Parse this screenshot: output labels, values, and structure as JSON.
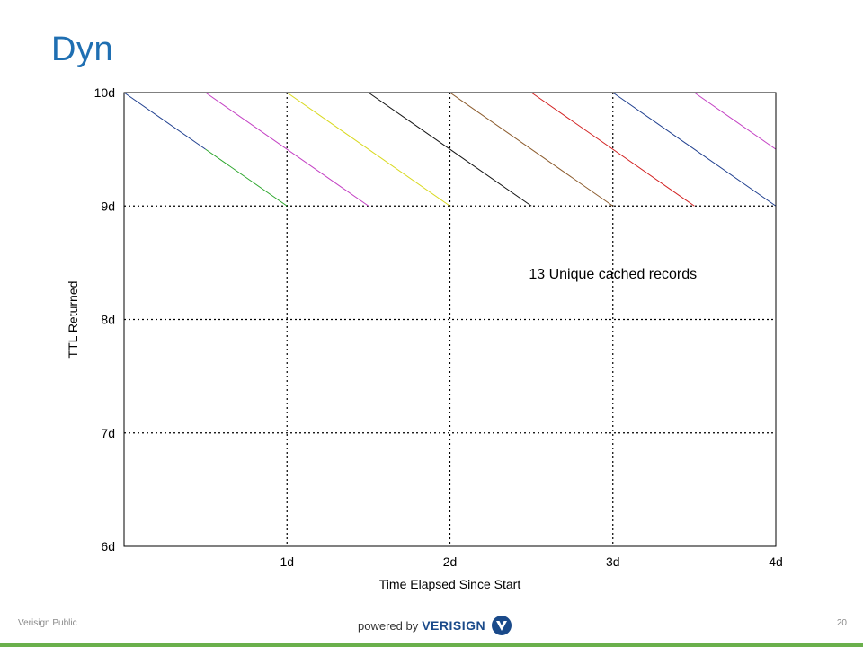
{
  "slide": {
    "title": "Dyn",
    "footer_left": "Verisign Public",
    "page_number": "20",
    "logo_powered": "powered by",
    "logo_brand": "VERISIGN"
  },
  "chart_data": {
    "type": "line",
    "title": "",
    "xlabel": "Time Elapsed Since Start",
    "ylabel": "TTL Returned",
    "xlim": [
      0,
      4
    ],
    "ylim": [
      6,
      10
    ],
    "x_ticks": [
      1,
      2,
      3,
      4
    ],
    "x_tick_labels": [
      "1d",
      "2d",
      "3d",
      "4d"
    ],
    "y_ticks": [
      6,
      7,
      8,
      9,
      10
    ],
    "y_tick_labels": [
      "6d",
      "7d",
      "8d",
      "9d",
      "10d"
    ],
    "grid": true,
    "annotation": {
      "text": "13 Unique cached records",
      "x": 3.0,
      "y": 8.4
    },
    "series": [
      {
        "color": "#1f3f8f",
        "x": [
          0,
          0.5
        ],
        "y": [
          10,
          9.5
        ]
      },
      {
        "color": "#2aa52a",
        "x": [
          0.5,
          1.0
        ],
        "y": [
          9.5,
          9.0
        ]
      },
      {
        "color": "#c33fc3",
        "x": [
          0.5,
          1.5
        ],
        "y": [
          10,
          9.0
        ]
      },
      {
        "color": "#d8d81a",
        "x": [
          1.0,
          2.0
        ],
        "y": [
          10,
          9.0
        ]
      },
      {
        "color": "#111111",
        "x": [
          1.5,
          2.5
        ],
        "y": [
          10,
          9.0
        ]
      },
      {
        "color": "#8b5a2b",
        "x": [
          2.0,
          3.0
        ],
        "y": [
          10,
          9.0
        ]
      },
      {
        "color": "#d22020",
        "x": [
          2.5,
          3.5
        ],
        "y": [
          10,
          9.0
        ]
      },
      {
        "color": "#1f3f8f",
        "x": [
          3.0,
          4.0
        ],
        "y": [
          10,
          9.0
        ]
      },
      {
        "color": "#c33fc3",
        "x": [
          3.5,
          4.0
        ],
        "y": [
          10,
          9.5
        ]
      }
    ]
  }
}
